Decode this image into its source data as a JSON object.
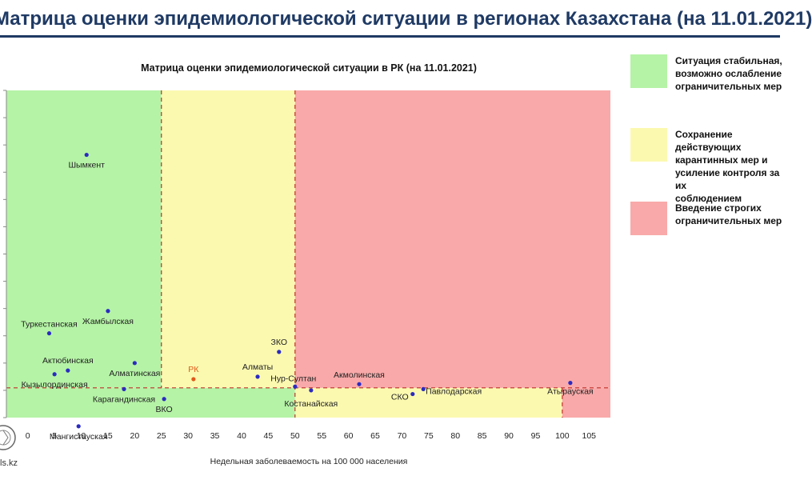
{
  "header": {
    "title": "Матрица оценки эпидемиологической ситуации в регионах Казахстана (на 11.01.2021)"
  },
  "colors": {
    "header_text": "#1f3a64",
    "zone_green": "#b5f3a6",
    "zone_yellow": "#fbf9b0",
    "zone_red": "#f9a9a9",
    "point_default": "#2b2bc0",
    "point_rk": "#e05a1a",
    "threshold_line": "#c0302a"
  },
  "chart_data": {
    "type": "scatter",
    "title": "Матрица оценки эпидемиологической ситуации в РК (на 11.01.2021)",
    "xlabel": "Недельная заболеваемость на 100 000 населения",
    "ylabel": "",
    "xlim": [
      -4,
      109
    ],
    "ylim": [
      -1.2,
      12.0
    ],
    "x_ticks": [
      "0",
      "5",
      "10",
      "15",
      "20",
      "25",
      "30",
      "35",
      "40",
      "45",
      "50",
      "55",
      "60",
      "65",
      "70",
      "75",
      "80",
      "85",
      "90",
      "95",
      "100",
      "105"
    ],
    "thresholds": {
      "x": [
        25,
        50,
        100
      ],
      "y": 0
    },
    "zones": [
      {
        "name": "green",
        "region": "x < 25, y > 0 and 25 ≤ x < 50, y < 0"
      },
      {
        "name": "yellow",
        "region": "25 ≤ x < 50, y > 0 and 50 ≤ x < 100, y < 0"
      },
      {
        "name": "red",
        "region": "x ≥ 50, y > 0 and x ≥ 100, y < 0"
      }
    ],
    "grid": false,
    "series": [
      {
        "points": [
          {
            "label": "Шымкент",
            "x": 11,
            "y": 9.4
          },
          {
            "label": "Жамбылская",
            "x": 15,
            "y": 3.1
          },
          {
            "label": "Туркестанская",
            "x": 4,
            "y": 2.2
          },
          {
            "label": "Актюбинская",
            "x": 7.5,
            "y": 0.7
          },
          {
            "label": "Кызылординская",
            "x": 5,
            "y": 0.55
          },
          {
            "label": "Алматинская",
            "x": 20,
            "y": 1.0
          },
          {
            "label": "Карагандинская",
            "x": 18,
            "y": -0.05
          },
          {
            "label": "ВКО",
            "x": 25.5,
            "y": -0.45
          },
          {
            "label": "Мангистауская",
            "x": 9.5,
            "y": -1.55
          },
          {
            "label": "РК",
            "x": 31,
            "y": 0.35
          },
          {
            "label": "Алматы",
            "x": 43,
            "y": 0.45
          },
          {
            "label": "ЗКО",
            "x": 47,
            "y": 1.45
          },
          {
            "label": "Нур-Султан",
            "x": 50,
            "y": 0.05
          },
          {
            "label": "Костанайская",
            "x": 53,
            "y": -0.1
          },
          {
            "label": "Акмолинская",
            "x": 62,
            "y": 0.15
          },
          {
            "label": "СКО",
            "x": 72,
            "y": -0.25
          },
          {
            "label": "Павлодарская",
            "x": 74,
            "y": -0.05
          },
          {
            "label": "Атырауская",
            "x": 101.5,
            "y": 0.2
          }
        ]
      }
    ]
  },
  "legend": [
    {
      "color": "#b5f3a6",
      "text": "Ситуация стабильная,\nвозможно ослабление\nограничительных мер"
    },
    {
      "color": "#fbf9b0",
      "text": "Сохранение действующих\nкарантинных мер и\nусиление контроля за их\nсоблюдением"
    },
    {
      "color": "#f9a9a9",
      "text": "Введение строгих\nограничительных мер"
    }
  ],
  "footer": {
    "logo_text": "ls.kz"
  }
}
